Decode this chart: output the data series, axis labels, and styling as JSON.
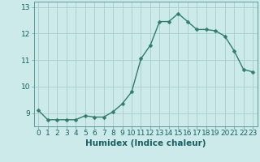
{
  "x": [
    0,
    1,
    2,
    3,
    4,
    5,
    6,
    7,
    8,
    9,
    10,
    11,
    12,
    13,
    14,
    15,
    16,
    17,
    18,
    19,
    20,
    21,
    22,
    23
  ],
  "y": [
    9.1,
    8.75,
    8.75,
    8.75,
    8.75,
    8.9,
    8.85,
    8.85,
    9.05,
    9.35,
    9.8,
    11.05,
    11.55,
    12.45,
    12.45,
    12.75,
    12.45,
    12.15,
    12.15,
    12.1,
    11.9,
    11.35,
    10.65,
    10.55
  ],
  "line_color": "#2e7d6e",
  "marker_color": "#2e7d6e",
  "bg_color": "#cceaea",
  "grid_color": "#aacccc",
  "xlabel": "Humidex (Indice chaleur)",
  "ylim": [
    8.5,
    13.2
  ],
  "xlim": [
    -0.5,
    23.5
  ],
  "yticks": [
    9,
    10,
    11,
    12,
    13
  ],
  "xticks": [
    0,
    1,
    2,
    3,
    4,
    5,
    6,
    7,
    8,
    9,
    10,
    11,
    12,
    13,
    14,
    15,
    16,
    17,
    18,
    19,
    20,
    21,
    22,
    23
  ],
  "font_color": "#1a5f5f",
  "xlabel_fontsize": 7.5,
  "tick_fontsize": 6.5,
  "linewidth": 1.0,
  "markersize": 2.5
}
